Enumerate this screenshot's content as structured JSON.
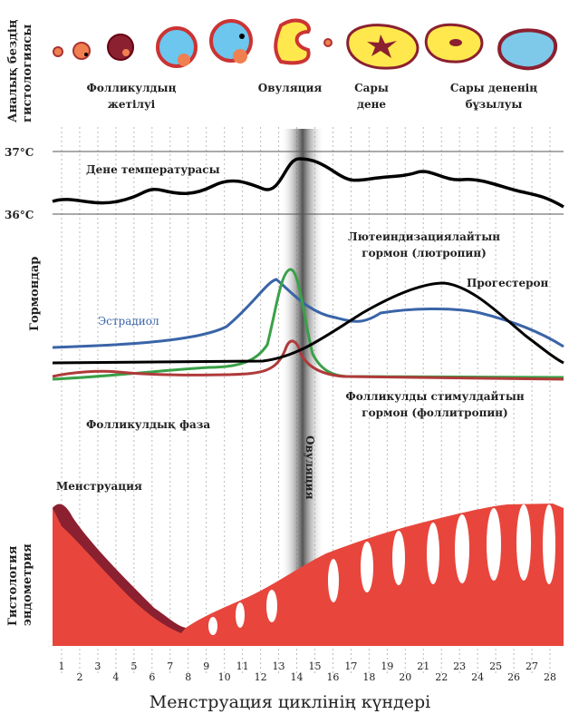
{
  "sidebar": {
    "ovary_histology": [
      "Аналық бездің",
      "гистологиясы"
    ],
    "hormones": "Гормондар",
    "endometrium": [
      "Гистология",
      "эндометрия"
    ]
  },
  "ovary": {
    "maturation": [
      "Фолликулдың",
      "жетілуі"
    ],
    "ovulation": "Овуляция",
    "corpus_luteum": [
      "Сары",
      "дене"
    ],
    "regression": [
      "Сары дененің",
      "бұзылуы"
    ]
  },
  "temperature": {
    "high": "37°C",
    "low": "36°C",
    "label": "Дене температурасы"
  },
  "hormones": {
    "lh": [
      "Лютеиндизациялайтын",
      "гормон (лютропин)"
    ],
    "progesterone": "Прогестерон",
    "estradiol": "Эстрадиол",
    "fsh": [
      "Фолликулды стимулдайтын",
      "гормон (фоллитропин)"
    ],
    "phase": "Фолликулдық фаза",
    "ovulation": "Овуляция"
  },
  "endometrium": {
    "menstruation": "Менструация"
  },
  "days": [
    1,
    2,
    3,
    4,
    5,
    6,
    7,
    8,
    9,
    10,
    11,
    12,
    13,
    14,
    15,
    16,
    17,
    18,
    19,
    20,
    21,
    22,
    23,
    24,
    25,
    26,
    27,
    28
  ],
  "x_axis_title": "Менструация циклінің күндері"
}
